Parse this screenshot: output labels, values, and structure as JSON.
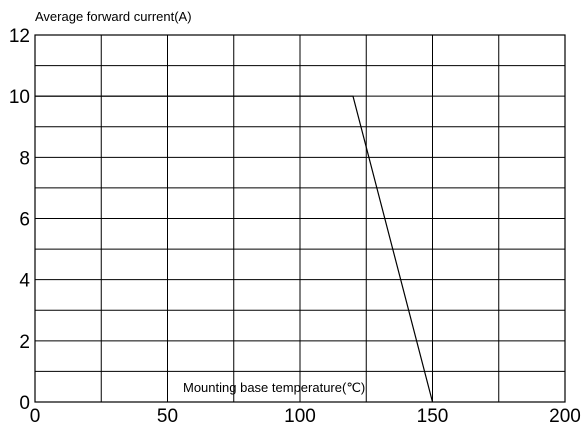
{
  "chart_data": {
    "type": "line",
    "ylabel": "Average forward current(A)",
    "xlabel": "Mounting base temperature(℃)",
    "xlim": [
      0,
      200
    ],
    "ylim": [
      0,
      12
    ],
    "x_ticks": [
      0,
      50,
      100,
      150,
      200
    ],
    "y_ticks": [
      0,
      2,
      4,
      6,
      8,
      10,
      12
    ],
    "x_ticks_label": [
      "0",
      "50",
      "100",
      "150",
      "200"
    ],
    "y_ticks_label": [
      "0",
      "2",
      "4",
      "6",
      "8",
      "10",
      "12"
    ],
    "x_grid_step": 25,
    "y_grid_step": 1,
    "grid": true,
    "series": [
      {
        "x": [
          0,
          120,
          150
        ],
        "y": [
          10,
          10,
          0
        ]
      }
    ]
  }
}
